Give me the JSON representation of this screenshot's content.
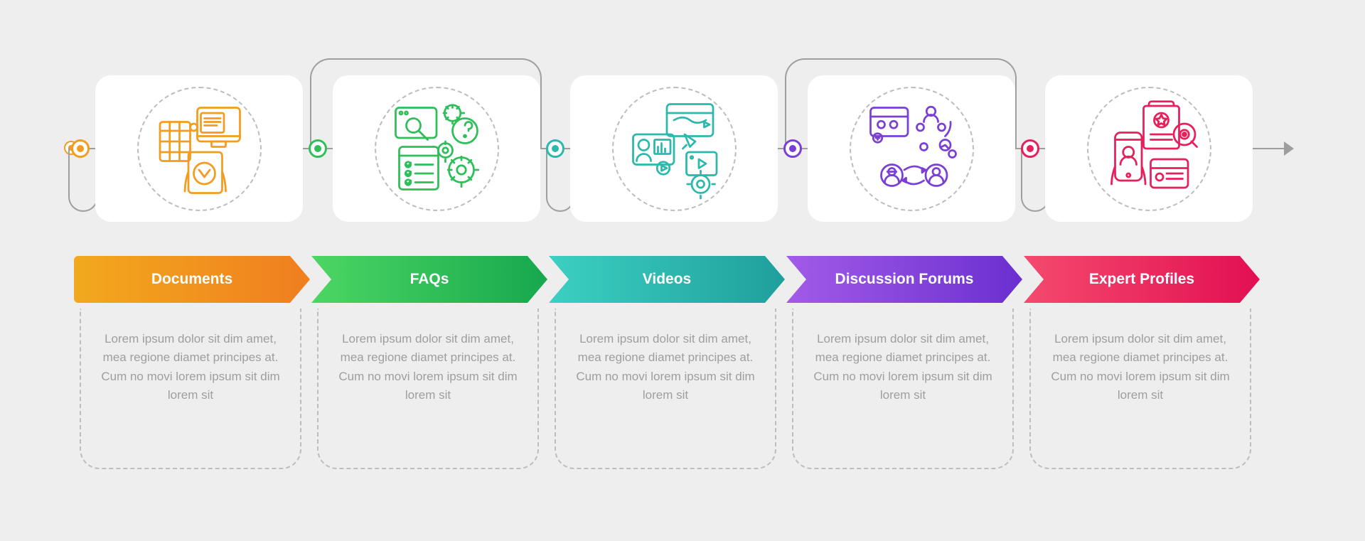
{
  "type": "infographic",
  "background_color": "#eeeeee",
  "card_bg": "#ffffff",
  "connector_color": "#9e9e9e",
  "dashed_color": "#bdbdbd",
  "text_color": "#9e9e9e",
  "title_fontsize": 21,
  "body_fontsize": 17,
  "card_radius": 22,
  "steps": [
    {
      "label": "Documents",
      "color": "#f39c1f",
      "gradient_from": "#f2a91e",
      "gradient_to": "#f07e1f",
      "direction": "down",
      "desc": "Lorem ipsum dolor sit dim amet, mea regione diamet principes at. Cum no movi lorem ipsum sit dim lorem sit"
    },
    {
      "label": "FAQs",
      "color": "#2fbf5a",
      "gradient_from": "#4cd663",
      "gradient_to": "#17a84e",
      "direction": "up",
      "desc": "Lorem ipsum dolor sit dim amet, mea regione diamet principes at. Cum no movi lorem ipsum sit dim lorem sit"
    },
    {
      "label": "Videos",
      "color": "#2cb8ad",
      "gradient_from": "#3cd0c2",
      "gradient_to": "#1f9f9c",
      "direction": "down",
      "desc": "Lorem ipsum dolor sit dim amet, mea regione diamet principes at. Cum no movi lorem ipsum sit dim lorem sit"
    },
    {
      "label": "Discussion Forums",
      "color": "#7b3fd6",
      "gradient_from": "#a25be8",
      "gradient_to": "#6b2fd0",
      "direction": "up",
      "desc": "Lorem ipsum dolor sit dim amet, mea regione diamet principes at. Cum no movi lorem ipsum sit dim lorem sit"
    },
    {
      "label": "Expert Profiles",
      "color": "#e81f5a",
      "gradient_from": "#f44a6e",
      "gradient_to": "#e20f52",
      "direction": "down",
      "desc": "Lorem ipsum dolor sit dim amet, mea regione diamet principes at. Cum no movi lorem ipsum sit dim lorem sit"
    }
  ]
}
